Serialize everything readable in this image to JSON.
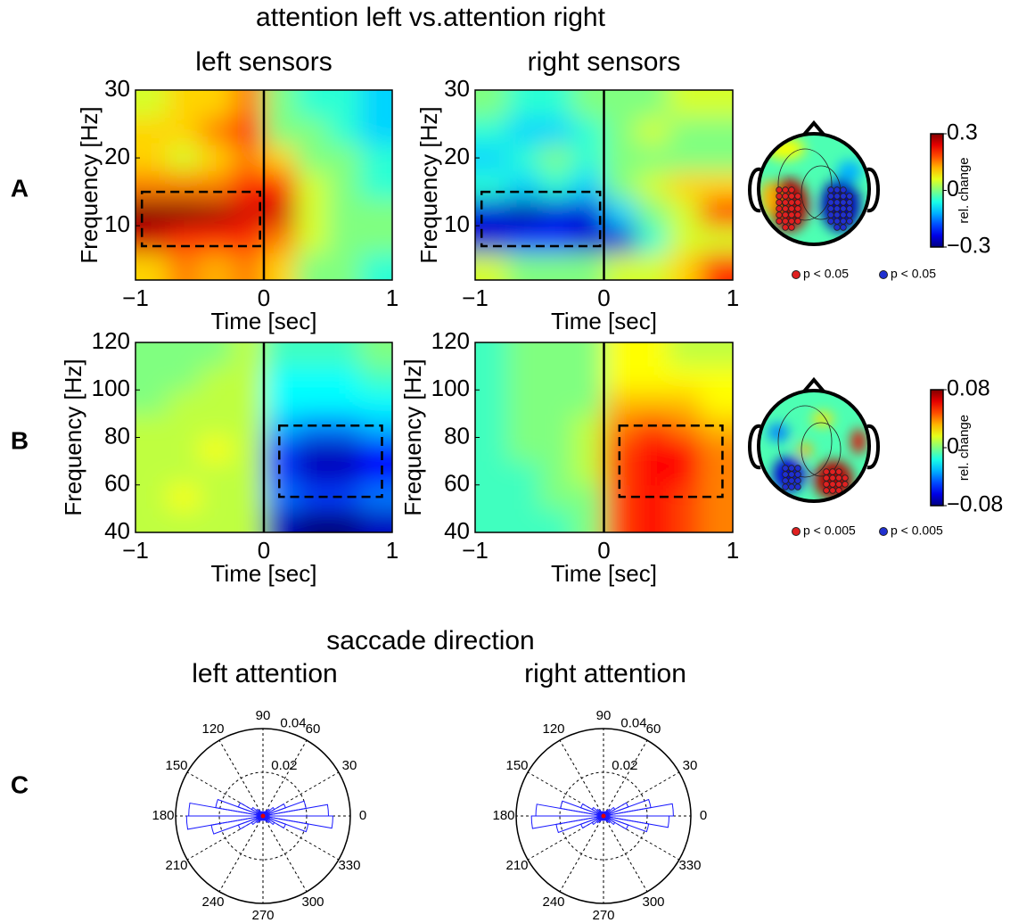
{
  "title": "attention left vs.attention right",
  "section_title": "saccade direction",
  "panel_labels": [
    "A",
    "B",
    "C"
  ],
  "chart_data": [
    {
      "type": "heatmap",
      "title": "left sensors",
      "xlabel": "Time [sec]",
      "ylabel": "Frequency [Hz]",
      "xlim": [
        -1,
        1
      ],
      "xticks": [
        {
          "value": -1,
          "label": "−1"
        },
        0,
        1
      ],
      "ylim": [
        2,
        30
      ],
      "yticks": [
        10,
        20,
        30
      ],
      "clim": [
        -0.3,
        0.3
      ],
      "marker_x": 0,
      "box_x": [
        -0.95,
        -0.03
      ],
      "box_y": [
        7,
        15
      ],
      "z": [
        [
          0.1,
          0.15,
          0.12,
          0.15,
          0.1,
          0,
          0,
          -0.05
        ],
        [
          0.25,
          0.2,
          0.2,
          0.2,
          0.15,
          0.05,
          0,
          0
        ],
        [
          0.3,
          0.3,
          0.28,
          0.25,
          0.25,
          0.05,
          0,
          0
        ],
        [
          0.15,
          0.15,
          0.15,
          0.2,
          0.2,
          0.05,
          0,
          -0.05
        ],
        [
          0.1,
          0.05,
          0.1,
          0.15,
          0.1,
          0,
          0,
          -0.05
        ],
        [
          0.1,
          0.1,
          0.15,
          0.2,
          0,
          0,
          -0.05,
          -0.1
        ],
        [
          0.05,
          0.1,
          0.1,
          0.15,
          0,
          -0.05,
          -0.05,
          -0.1
        ]
      ]
    },
    {
      "type": "heatmap",
      "title": "right sensors",
      "xlabel": "Time [sec]",
      "ylabel": "Frequency [Hz]",
      "xlim": [
        -1,
        1
      ],
      "xticks": [
        {
          "value": -1,
          "label": "−1"
        },
        0,
        1
      ],
      "ylim": [
        2,
        30
      ],
      "yticks": [
        10,
        20,
        30
      ],
      "clim": [
        -0.3,
        0.3
      ],
      "marker_x": 0,
      "box_x": [
        -0.95,
        -0.03
      ],
      "box_y": [
        7,
        15
      ],
      "z": [
        [
          0.05,
          0,
          0,
          0,
          0.05,
          0.05,
          0.1,
          0.2
        ],
        [
          -0.25,
          -0.2,
          -0.2,
          -0.25,
          -0.25,
          -0.05,
          0.05,
          0.05
        ],
        [
          -0.25,
          -0.28,
          -0.25,
          -0.25,
          -0.1,
          0,
          0.05,
          0.2
        ],
        [
          -0.05,
          -0.1,
          -0.05,
          -0.1,
          0,
          0.05,
          0.1,
          0.1
        ],
        [
          -0.1,
          -0.05,
          0,
          -0.05,
          0,
          0,
          0,
          0
        ],
        [
          -0.05,
          -0.1,
          -0.1,
          -0.05,
          0,
          0.05,
          0,
          0
        ],
        [
          0,
          -0.05,
          -0.05,
          0,
          0,
          0,
          0.05,
          0.05
        ]
      ]
    },
    {
      "type": "topoplot",
      "clim": [
        -0.3,
        0.3
      ],
      "cticks": [
        {
          "value": 0.3,
          "label": "0.3"
        },
        0,
        {
          "value": -0.3,
          "label": "−0.3"
        }
      ],
      "clabel": "rel. change",
      "pattern": "A",
      "legend": [
        {
          "name": "p < 0.05",
          "color": "#e02020"
        },
        {
          "name": "p < 0.05",
          "color": "#2030d0"
        }
      ]
    },
    {
      "type": "heatmap",
      "xlabel": "Time [sec]",
      "ylabel": "Frequency [Hz]",
      "xlim": [
        -1,
        1
      ],
      "xticks": [
        {
          "value": -1,
          "label": "−1"
        },
        0,
        1
      ],
      "ylim": [
        40,
        120
      ],
      "yticks": [
        40,
        60,
        80,
        100,
        120
      ],
      "clim": [
        -0.08,
        0.08
      ],
      "marker_x": 0,
      "box_x": [
        0.12,
        0.92
      ],
      "box_y": [
        55,
        85
      ],
      "z": [
        [
          0.01,
          0.01,
          0.01,
          0.01,
          -0.07,
          -0.08,
          -0.08,
          -0.07
        ],
        [
          0.01,
          0.02,
          0.01,
          0.01,
          -0.04,
          -0.05,
          -0.05,
          -0.04
        ],
        [
          0.01,
          0.01,
          0.01,
          0.01,
          -0.05,
          -0.07,
          -0.07,
          -0.06
        ],
        [
          0.01,
          0.01,
          0.02,
          0.01,
          -0.05,
          -0.07,
          -0.07,
          -0.06
        ],
        [
          0.01,
          0.01,
          0.01,
          0.01,
          -0.03,
          -0.04,
          -0.04,
          -0.03
        ],
        [
          0,
          0.01,
          0.01,
          0.01,
          -0.02,
          -0.02,
          -0.02,
          -0.02
        ],
        [
          0,
          0,
          0.01,
          0.01,
          -0.02,
          -0.02,
          -0.02,
          -0.01
        ],
        [
          0,
          0,
          0,
          0.01,
          -0.01,
          -0.01,
          -0.01,
          0
        ]
      ]
    },
    {
      "type": "heatmap",
      "xlabel": "Time [sec]",
      "ylabel": "Frequency [Hz]",
      "xlim": [
        -1,
        1
      ],
      "xticks": [
        {
          "value": -1,
          "label": "−1"
        },
        0,
        1
      ],
      "ylim": [
        40,
        120
      ],
      "yticks": [
        40,
        60,
        80,
        100,
        120
      ],
      "clim": [
        -0.08,
        0.08
      ],
      "marker_x": 0,
      "box_x": [
        0.12,
        0.92
      ],
      "box_y": [
        55,
        85
      ],
      "z": [
        [
          -0.01,
          -0.01,
          -0.01,
          0,
          0.05,
          0.06,
          0.05,
          0.04
        ],
        [
          -0.01,
          -0.01,
          0,
          0,
          0.05,
          0.06,
          0.05,
          0.04
        ],
        [
          -0.01,
          -0.01,
          0,
          0.01,
          0.05,
          0.06,
          0.06,
          0.04
        ],
        [
          -0.01,
          0,
          0,
          0.01,
          0.05,
          0.06,
          0.06,
          0.04
        ],
        [
          -0.01,
          0,
          0,
          0.01,
          0.04,
          0.05,
          0.04,
          0.03
        ],
        [
          -0.01,
          0,
          0,
          0,
          0.03,
          0.03,
          0.03,
          0.02
        ],
        [
          -0.01,
          0,
          0,
          0,
          0.02,
          0.02,
          0.02,
          0.02
        ],
        [
          -0.01,
          0,
          0,
          0,
          0.02,
          0.02,
          0.01,
          0.01
        ]
      ]
    },
    {
      "type": "topoplot",
      "clim": [
        -0.08,
        0.08
      ],
      "cticks": [
        {
          "value": 0.08,
          "label": "0.08"
        },
        0,
        {
          "value": -0.08,
          "label": "−0.08"
        }
      ],
      "clabel": "rel. change",
      "pattern": "B",
      "legend": [
        {
          "name": "p < 0.005",
          "color": "#e02020"
        },
        {
          "name": "p < 0.005",
          "color": "#2030d0"
        }
      ]
    },
    {
      "type": "polar_histogram",
      "title": "left attention",
      "color": "#1a1aff",
      "rlim": [
        0,
        0.04
      ],
      "rticks": [
        0.02,
        0.04
      ],
      "thetaticks": [
        0,
        30,
        60,
        90,
        120,
        150,
        180,
        210,
        240,
        270,
        300,
        330
      ],
      "bins": [
        0,
        10,
        20,
        30,
        40,
        50,
        60,
        70,
        80,
        90,
        100,
        110,
        120,
        130,
        140,
        150,
        160,
        170,
        180,
        190,
        200,
        210,
        220,
        230,
        240,
        250,
        260,
        270,
        280,
        290,
        300,
        310,
        320,
        330,
        340,
        350,
        360
      ],
      "values": [
        0.03,
        0.02,
        0.011,
        0.006,
        0.004,
        0.003,
        0.002,
        0.002,
        0.002,
        0.002,
        0.002,
        0.002,
        0.003,
        0.004,
        0.006,
        0.012,
        0.022,
        0.034,
        0.035,
        0.024,
        0.012,
        0.006,
        0.004,
        0.003,
        0.002,
        0.002,
        0.002,
        0.002,
        0.002,
        0.002,
        0.003,
        0.004,
        0.006,
        0.011,
        0.021,
        0.032
      ]
    },
    {
      "type": "polar_histogram",
      "title": "right attention",
      "color": "#1a1aff",
      "rlim": [
        0,
        0.04
      ],
      "rticks": [
        0.02,
        0.04
      ],
      "thetaticks": [
        0,
        30,
        60,
        90,
        120,
        150,
        180,
        210,
        240,
        270,
        300,
        330
      ],
      "bins": [
        0,
        10,
        20,
        30,
        40,
        50,
        60,
        70,
        80,
        90,
        100,
        110,
        120,
        130,
        140,
        150,
        160,
        170,
        180,
        190,
        200,
        210,
        220,
        230,
        240,
        250,
        260,
        270,
        280,
        290,
        300,
        310,
        320,
        330,
        340,
        350,
        360
      ],
      "values": [
        0.032,
        0.022,
        0.012,
        0.006,
        0.004,
        0.003,
        0.002,
        0.002,
        0.002,
        0.002,
        0.002,
        0.002,
        0.003,
        0.004,
        0.006,
        0.011,
        0.02,
        0.031,
        0.033,
        0.022,
        0.011,
        0.006,
        0.004,
        0.003,
        0.002,
        0.002,
        0.002,
        0.002,
        0.002,
        0.002,
        0.003,
        0.004,
        0.006,
        0.012,
        0.021,
        0.03
      ]
    }
  ]
}
